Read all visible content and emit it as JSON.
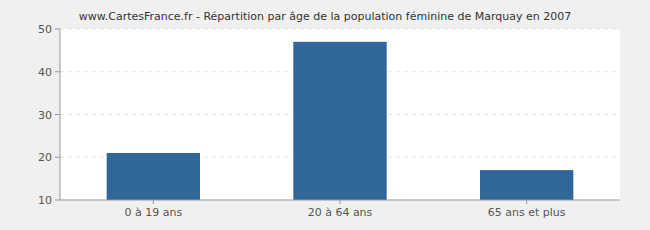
{
  "chart_data": {
    "type": "bar",
    "title": "www.CartesFrance.fr - Répartition par âge de la population féminine de Marquay en 2007",
    "categories": [
      "0 à 19 ans",
      "20 à 64 ans",
      "65 ans et plus"
    ],
    "values": [
      21,
      47,
      17
    ],
    "color": "#31669a",
    "ylim": [
      10,
      50
    ],
    "yticks": [
      10,
      20,
      30,
      40,
      50
    ],
    "grid": true
  }
}
